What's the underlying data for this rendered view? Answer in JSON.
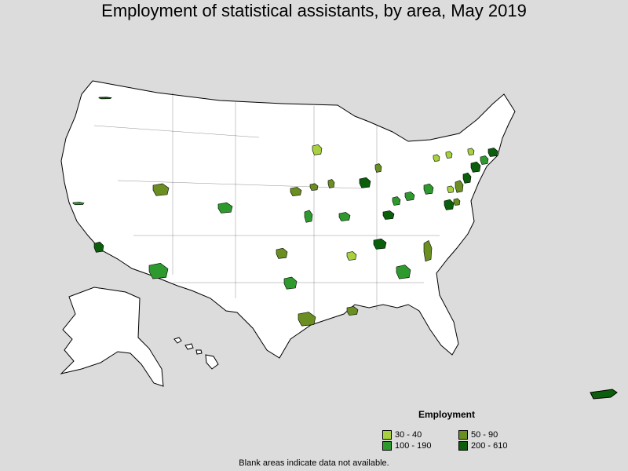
{
  "title": "Employment of statistical assistants, by area, May 2019",
  "legend": {
    "title": "Employment",
    "classes": [
      {
        "label": "30 - 40",
        "color": "#a7d13e"
      },
      {
        "label": "50 - 90",
        "color": "#6b8e23"
      },
      {
        "label": "100 - 190",
        "color": "#2e9a2e"
      },
      {
        "label": "200 - 610",
        "color": "#0b5e0b"
      }
    ]
  },
  "note": "Blank areas indicate data not available.",
  "colors": {
    "background": "#dcdcdc",
    "land": "#ffffff",
    "border": "#000000"
  }
}
